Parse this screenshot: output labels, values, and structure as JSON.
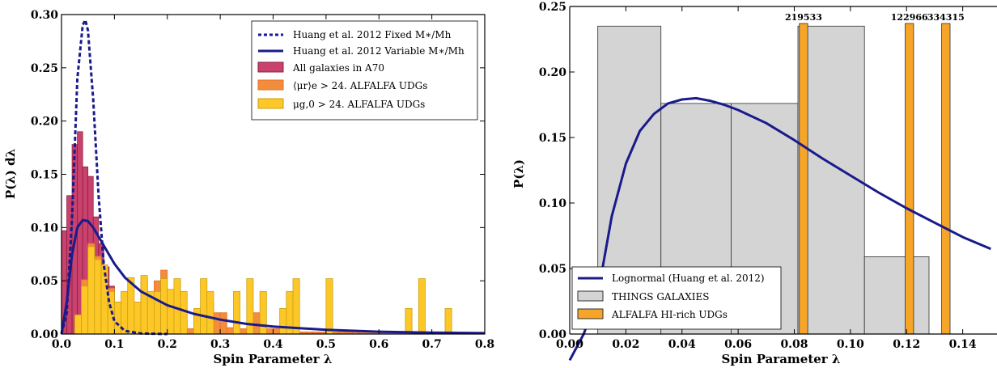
{
  "chart_data": [
    {
      "type": "bar",
      "xlabel": "Spin Parameter λ",
      "ylabel": "P(λ) dλ",
      "xlim": [
        0.0,
        0.8
      ],
      "ylim": [
        0.0,
        0.3
      ],
      "xticks": [
        "0.0",
        "0.1",
        "0.2",
        "0.3",
        "0.4",
        "0.5",
        "0.6",
        "0.7",
        "0.8"
      ],
      "yticks": [
        "0.00",
        "0.05",
        "0.10",
        "0.15",
        "0.20",
        "0.25",
        "0.30"
      ],
      "legend_position": "top-right",
      "series": [
        {
          "name": "Huang et al. 2012 Fixed M∗/Mh",
          "kind": "line",
          "style": "dashed",
          "color": "#1a1a8c",
          "x": [
            0.0,
            0.01,
            0.02,
            0.03,
            0.04,
            0.045,
            0.05,
            0.06,
            0.07,
            0.08,
            0.09,
            0.1,
            0.12,
            0.15,
            0.2
          ],
          "y": [
            0.0,
            0.02,
            0.11,
            0.24,
            0.29,
            0.295,
            0.285,
            0.22,
            0.13,
            0.065,
            0.03,
            0.012,
            0.003,
            0.0005,
            0.0
          ]
        },
        {
          "name": "Huang et al. 2012 Variable M∗/Mh",
          "kind": "line",
          "style": "solid",
          "color": "#1a1a8c",
          "x": [
            0.0,
            0.01,
            0.02,
            0.03,
            0.04,
            0.05,
            0.06,
            0.08,
            0.1,
            0.12,
            0.15,
            0.2,
            0.25,
            0.3,
            0.35,
            0.4,
            0.5,
            0.6,
            0.7,
            0.8
          ],
          "y": [
            0.0,
            0.03,
            0.075,
            0.1,
            0.107,
            0.106,
            0.1,
            0.083,
            0.066,
            0.053,
            0.04,
            0.027,
            0.019,
            0.0135,
            0.0095,
            0.007,
            0.004,
            0.0022,
            0.0013,
            0.0008
          ]
        },
        {
          "name": "All galaxies in A70",
          "kind": "hist",
          "color": "#c9426e",
          "edge": "#8c2040",
          "bin_width": 0.01,
          "x": [
            0.0,
            0.01,
            0.02,
            0.03,
            0.04,
            0.05,
            0.06,
            0.07,
            0.08,
            0.09,
            0.1,
            0.11,
            0.12,
            0.13,
            0.14,
            0.15,
            0.17
          ],
          "values": [
            0.097,
            0.13,
            0.178,
            0.19,
            0.157,
            0.148,
            0.11,
            0.085,
            0.063,
            0.045,
            0.03,
            0.02,
            0.012,
            0.009,
            0.006,
            0.004,
            0.002
          ]
        },
        {
          "name": "⟨μr⟩e > 24. ALFALFA UDGs",
          "kind": "hist",
          "color": "#f28d3c",
          "edge": "#e86f2c",
          "bin_width": 0.0125,
          "x": [
            0.025,
            0.0375,
            0.05,
            0.0625,
            0.075,
            0.0875,
            0.1,
            0.1125,
            0.125,
            0.1375,
            0.15,
            0.1625,
            0.175,
            0.1875,
            0.2,
            0.2125,
            0.225,
            0.2375,
            0.25,
            0.2625,
            0.275,
            0.2875,
            0.3,
            0.3125,
            0.325,
            0.3375,
            0.35,
            0.3625,
            0.375,
            0.3875,
            0.4,
            0.4125,
            0.425,
            0.4375,
            0.45,
            0.4625,
            0.475,
            0.4875,
            0.5,
            0.5125,
            0.525,
            0.5375,
            0.55,
            0.5625,
            0.575,
            0.5875,
            0.6,
            0.6125,
            0.625,
            0.6375,
            0.65,
            0.6625,
            0.675
          ],
          "values": [
            0.017,
            0.051,
            0.085,
            0.073,
            0.05,
            0.043,
            0.03,
            0.025,
            0.02,
            0.03,
            0.05,
            0.04,
            0.05,
            0.06,
            0.03,
            0.02,
            0.012,
            0.005,
            0.012,
            0.02,
            0.03,
            0.02,
            0.02,
            0.006,
            0.005,
            0.005,
            0.005,
            0.02,
            0.005,
            0.005,
            0.005,
            0.002,
            0.002,
            0.002,
            0.002,
            0.002,
            0.002,
            0.002,
            0.002,
            0.002,
            0.002,
            0.002,
            0.002,
            0.002,
            0.002,
            0.002,
            0.002,
            0.002,
            0.002,
            0.002,
            0.002,
            0.002,
            0.002
          ]
        },
        {
          "name": "μg,0 > 24. ALFALFA UDGs",
          "kind": "hist",
          "color": "#fdc827",
          "edge": "#c9a010",
          "bin_width": 0.0125,
          "x": [
            0.025,
            0.0375,
            0.05,
            0.0625,
            0.075,
            0.0875,
            0.1,
            0.1125,
            0.125,
            0.1375,
            0.15,
            0.1625,
            0.175,
            0.1875,
            0.2,
            0.2125,
            0.225,
            0.2375,
            0.25,
            0.2625,
            0.275,
            0.2875,
            0.3,
            0.3125,
            0.325,
            0.3375,
            0.35,
            0.3625,
            0.375,
            0.3875,
            0.4,
            0.4125,
            0.425,
            0.4375,
            0.45,
            0.4625,
            0.475,
            0.4875,
            0.5,
            0.5125,
            0.525,
            0.5375,
            0.55,
            0.5625,
            0.575,
            0.5875,
            0.6,
            0.6125,
            0.625,
            0.6375,
            0.65,
            0.6625,
            0.675,
            0.6875,
            0.7,
            0.7125,
            0.725,
            0.7375
          ],
          "values": [
            0.018,
            0.045,
            0.082,
            0.07,
            0.065,
            0.04,
            0.03,
            0.04,
            0.053,
            0.03,
            0.055,
            0.04,
            0.04,
            0.052,
            0.042,
            0.052,
            0.04,
            0.0,
            0.024,
            0.052,
            0.04,
            0.0,
            0.0,
            0.0,
            0.04,
            0.0,
            0.052,
            0.0,
            0.04,
            0.0,
            0.0,
            0.024,
            0.04,
            0.052,
            0.0,
            0.0,
            0.0,
            0.0,
            0.052,
            0.0,
            0.0,
            0.0,
            0.0,
            0.0,
            0.0,
            0.0,
            0.0,
            0.0,
            0.0,
            0.0,
            0.024,
            0.0,
            0.052,
            0.0,
            0.0,
            0.0,
            0.024,
            0.0
          ]
        }
      ]
    },
    {
      "type": "bar",
      "xlabel": "Spin Parameter λ",
      "ylabel": "P(λ)",
      "xlim": [
        0.0,
        0.16
      ],
      "ylim": [
        0.0,
        0.25
      ],
      "xticks": [
        "0.00",
        "0.02",
        "0.04",
        "0.06",
        "0.08",
        "0.10",
        "0.12",
        "0.14"
      ],
      "yticks": [
        "0.00",
        "0.05",
        "0.10",
        "0.15",
        "0.20",
        "0.25"
      ],
      "legend_position": "bottom-left",
      "series": [
        {
          "name": "Lognormal (Huang et al. 2012)",
          "kind": "line",
          "style": "solid",
          "color": "#1a1a8c",
          "x": [
            0.0,
            0.005,
            0.01,
            0.015,
            0.02,
            0.025,
            0.03,
            0.035,
            0.04,
            0.045,
            0.05,
            0.055,
            0.06,
            0.07,
            0.08,
            0.09,
            0.1,
            0.11,
            0.12,
            0.13,
            0.14,
            0.15
          ],
          "y": [
            -0.02,
            0.0,
            0.03,
            0.09,
            0.13,
            0.155,
            0.168,
            0.176,
            0.179,
            0.18,
            0.178,
            0.175,
            0.171,
            0.161,
            0.148,
            0.134,
            0.121,
            0.108,
            0.096,
            0.085,
            0.074,
            0.065
          ]
        },
        {
          "name": "THINGS GALAXIES",
          "kind": "hist",
          "color": "#d4d4d4",
          "edge": "#303030",
          "bins": [
            [
              0.01,
              0.0325
            ],
            [
              0.0325,
              0.0575
            ],
            [
              0.0575,
              0.0813
            ],
            [
              0.0813,
              0.105
            ],
            [
              0.105,
              0.128
            ]
          ],
          "values": [
            0.235,
            0.176,
            0.176,
            0.235,
            0.059
          ]
        },
        {
          "name": "ALFALFA HI-rich UDGs",
          "kind": "hist",
          "color": "#f6a529",
          "edge": "#303030",
          "bins": [
            [
              0.0818,
              0.0848
            ],
            [
              0.1195,
              0.1225
            ],
            [
              0.1325,
              0.1355
            ]
          ],
          "values": [
            0.237,
            0.237,
            0.237
          ],
          "labels": [
            "219533",
            "122966",
            "334315"
          ]
        }
      ]
    }
  ]
}
